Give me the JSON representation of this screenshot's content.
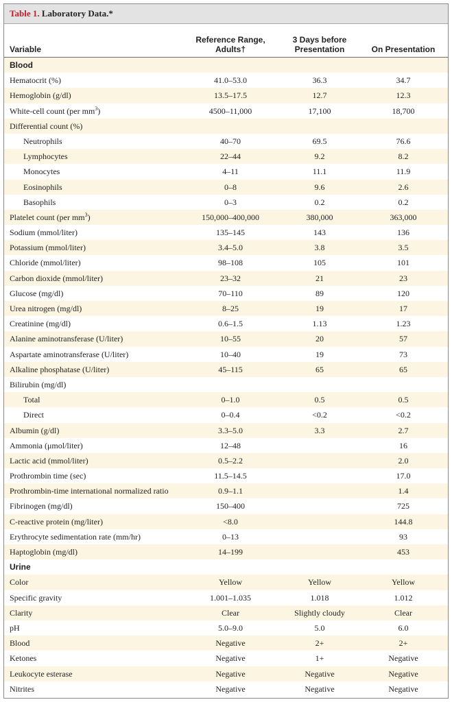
{
  "table": {
    "label": "Table 1.",
    "title": "Laboratory Data.*"
  },
  "columns": {
    "variable": "Variable",
    "reference": [
      "Reference Range,",
      "Adults†"
    ],
    "three_days": [
      "3 Days before",
      "Presentation"
    ],
    "presentation": "On Presentation"
  },
  "rows": [
    {
      "label": "Blood",
      "ref": "",
      "before": "",
      "on": "",
      "kind": "section"
    },
    {
      "label": "Hematocrit (%)",
      "ref": "41.0–53.0",
      "before": "36.3",
      "on": "34.7",
      "kind": "row"
    },
    {
      "label": "Hemoglobin (g/dl)",
      "ref": "13.5–17.5",
      "before": "12.7",
      "on": "12.3",
      "kind": "row"
    },
    {
      "label": "White-cell count (per mm",
      "sup": "3",
      "label_end": ")",
      "ref": "4500–11,000",
      "before": "17,100",
      "on": "18,700",
      "kind": "row"
    },
    {
      "label": "Differential count (%)",
      "ref": "",
      "before": "",
      "on": "",
      "kind": "row"
    },
    {
      "label": "Neutrophils",
      "ref": "40–70",
      "before": "69.5",
      "on": "76.6",
      "kind": "indent"
    },
    {
      "label": "Lymphocytes",
      "ref": "22–44",
      "before": "9.2",
      "on": "8.2",
      "kind": "indent"
    },
    {
      "label": "Monocytes",
      "ref": "4–11",
      "before": "11.1",
      "on": "11.9",
      "kind": "indent"
    },
    {
      "label": "Eosinophils",
      "ref": "0–8",
      "before": "9.6",
      "on": "2.6",
      "kind": "indent"
    },
    {
      "label": "Basophils",
      "ref": "0–3",
      "before": "0.2",
      "on": "0.2",
      "kind": "indent"
    },
    {
      "label": "Platelet count (per mm",
      "sup": "3",
      "label_end": ")",
      "ref": "150,000–400,000",
      "before": "380,000",
      "on": "363,000",
      "kind": "row"
    },
    {
      "label": "Sodium (mmol/liter)",
      "ref": "135–145",
      "before": "143",
      "on": "136",
      "kind": "row"
    },
    {
      "label": "Potassium (mmol/liter)",
      "ref": "3.4–5.0",
      "before": "3.8",
      "on": "3.5",
      "kind": "row"
    },
    {
      "label": "Chloride (mmol/liter)",
      "ref": "98–108",
      "before": "105",
      "on": "101",
      "kind": "row"
    },
    {
      "label": "Carbon dioxide (mmol/liter)",
      "ref": "23–32",
      "before": "21",
      "on": "23",
      "kind": "row"
    },
    {
      "label": "Glucose (mg/dl)",
      "ref": "70–110",
      "before": "89",
      "on": "120",
      "kind": "row"
    },
    {
      "label": "Urea nitrogen (mg/dl)",
      "ref": "8–25",
      "before": "19",
      "on": "17",
      "kind": "row"
    },
    {
      "label": "Creatinine (mg/dl)",
      "ref": "0.6–1.5",
      "before": "1.13",
      "on": "1.23",
      "kind": "row"
    },
    {
      "label": "Alanine aminotransferase (U/liter)",
      "ref": "10–55",
      "before": "20",
      "on": "57",
      "kind": "row"
    },
    {
      "label": "Aspartate aminotransferase (U/liter)",
      "ref": "10–40",
      "before": "19",
      "on": "73",
      "kind": "row"
    },
    {
      "label": "Alkaline phosphatase (U/liter)",
      "ref": "45–115",
      "before": "65",
      "on": "65",
      "kind": "row"
    },
    {
      "label": "Bilirubin (mg/dl)",
      "ref": "",
      "before": "",
      "on": "",
      "kind": "row"
    },
    {
      "label": "Total",
      "ref": "0–1.0",
      "before": "0.5",
      "on": "0.5",
      "kind": "indent"
    },
    {
      "label": "Direct",
      "ref": "0–0.4",
      "before": "<0.2",
      "on": "<0.2",
      "kind": "indent"
    },
    {
      "label": "Albumin (g/dl)",
      "ref": "3.3–5.0",
      "before": "3.3",
      "on": "2.7",
      "kind": "row"
    },
    {
      "label": "Ammonia (μmol/liter)",
      "ref": "12–48",
      "before": "",
      "on": "16",
      "kind": "row"
    },
    {
      "label": "Lactic acid (mmol/liter)",
      "ref": "0.5–2.2",
      "before": "",
      "on": "2.0",
      "kind": "row"
    },
    {
      "label": "Prothrombin time (sec)",
      "ref": "11.5–14.5",
      "before": "",
      "on": "17.0",
      "kind": "row"
    },
    {
      "label": "Prothrombin-time international normalized ratio",
      "ref": "0.9–1.1",
      "before": "",
      "on": "1.4",
      "kind": "row"
    },
    {
      "label": "Fibrinogen (mg/dl)",
      "ref": "150–400",
      "before": "",
      "on": "725",
      "kind": "row"
    },
    {
      "label": "C-reactive protein (mg/liter)",
      "ref": "<8.0",
      "before": "",
      "on": "144.8",
      "kind": "row"
    },
    {
      "label": "Erythrocyte sedimentation rate (mm/hr)",
      "ref": "0–13",
      "before": "",
      "on": "93",
      "kind": "row"
    },
    {
      "label": "Haptoglobin (mg/dl)",
      "ref": "14–199",
      "before": "",
      "on": "453",
      "kind": "row"
    },
    {
      "label": "Urine",
      "ref": "",
      "before": "",
      "on": "",
      "kind": "section"
    },
    {
      "label": "Color",
      "ref": "Yellow",
      "before": "Yellow",
      "on": "Yellow",
      "kind": "row"
    },
    {
      "label": "Specific gravity",
      "ref": "1.001–1.035",
      "before": "1.018",
      "on": "1.012",
      "kind": "row"
    },
    {
      "label": "Clarity",
      "ref": "Clear",
      "before": "Slightly cloudy",
      "on": "Clear",
      "kind": "row"
    },
    {
      "label": "pH",
      "ref": "5.0–9.0",
      "before": "5.0",
      "on": "6.0",
      "kind": "row"
    },
    {
      "label": "Blood",
      "ref": "Negative",
      "before": "2+",
      "on": "2+",
      "kind": "row"
    },
    {
      "label": "Ketones",
      "ref": "Negative",
      "before": "1+",
      "on": "Negative",
      "kind": "row"
    },
    {
      "label": "Leukocyte esterase",
      "ref": "Negative",
      "before": "Negative",
      "on": "Negative",
      "kind": "row"
    },
    {
      "label": "Nitrites",
      "ref": "Negative",
      "before": "Negative",
      "on": "Negative",
      "kind": "row"
    }
  ]
}
